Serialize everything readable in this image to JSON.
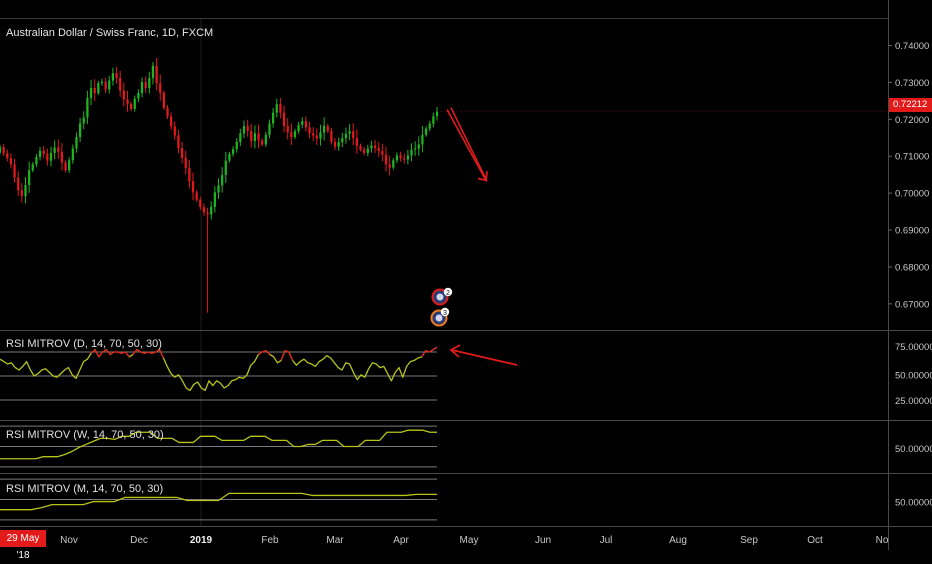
{
  "header": {
    "title": "Australian Dollar / Swiss Franc, 1D, FXCM"
  },
  "price_badge": "0.72212",
  "date_badge": "29 May '18",
  "events": [
    {
      "label": "2"
    },
    {
      "label": "3"
    }
  ],
  "colors": {
    "up": "#1fb51f",
    "down": "#e31a1a",
    "rsi_line": "#b7c41a",
    "level_line": "#7a7a7a",
    "arrow": "#e31a1a",
    "badge": "#e31a1a"
  },
  "chart_data": [
    {
      "type": "candlestick",
      "title": "Australian Dollar / Swiss Franc, 1D, FXCM",
      "x_ticks": [
        "Nov",
        "Dec",
        "2019",
        "Feb",
        "Mar",
        "Apr",
        "May",
        "Jun",
        "Jul",
        "Aug",
        "Sep",
        "Oct",
        "No"
      ],
      "y_ticks": [
        "0.74000",
        "0.73000",
        "0.72000",
        "0.71000",
        "0.70000",
        "0.69000",
        "0.68000",
        "0.67000"
      ],
      "ylim": [
        0.664,
        0.7442
      ],
      "last_price": 0.72212,
      "closes": [
        0.7125,
        0.7108,
        0.7095,
        0.7078,
        0.7042,
        0.7008,
        0.6992,
        0.7022,
        0.7062,
        0.7078,
        0.7098,
        0.7115,
        0.7106,
        0.7088,
        0.7109,
        0.7124,
        0.7112,
        0.7083,
        0.7062,
        0.7089,
        0.7121,
        0.7152,
        0.7189,
        0.7205,
        0.7258,
        0.7285,
        0.7271,
        0.7298,
        0.7302,
        0.7281,
        0.7305,
        0.7325,
        0.7312,
        0.7278,
        0.7254,
        0.7242,
        0.7228,
        0.7256,
        0.7271,
        0.7301,
        0.7285,
        0.7312,
        0.7345,
        0.7298,
        0.7272,
        0.7231,
        0.7208,
        0.7181,
        0.7156,
        0.7122,
        0.7096,
        0.7068,
        0.7032,
        0.7002,
        0.6982,
        0.6962,
        0.6948,
        0.6942,
        0.6963,
        0.7002,
        0.7021,
        0.7049,
        0.7088,
        0.7106,
        0.7119,
        0.7139,
        0.7162,
        0.7182,
        0.7168,
        0.7141,
        0.7162,
        0.7143,
        0.7132,
        0.7158,
        0.7189,
        0.7218,
        0.7241,
        0.7218,
        0.7182,
        0.7165,
        0.7152,
        0.7168,
        0.7185,
        0.7195,
        0.7178,
        0.7162,
        0.7156,
        0.7148,
        0.7164,
        0.7182,
        0.7168,
        0.7139,
        0.7126,
        0.7138,
        0.7149,
        0.7161,
        0.7168,
        0.7149,
        0.7128,
        0.7118,
        0.7109,
        0.7121,
        0.7129,
        0.7122,
        0.7114,
        0.7104,
        0.7078,
        0.7069,
        0.7089,
        0.7102,
        0.7095,
        0.7091,
        0.7102,
        0.7118,
        0.7121,
        0.7132,
        0.7158,
        0.7175,
        0.7188,
        0.7208,
        0.7221
      ],
      "wick_extremes": {
        "high": 0.7355,
        "low": 0.6676
      },
      "drawn_arrow": {
        "from": {
          "month": "Apr",
          "price": 0.7221
        },
        "to": {
          "month": "May",
          "price": 0.7032
        }
      },
      "events": [
        "2",
        "3"
      ]
    },
    {
      "type": "line",
      "title": "RSI MITROV (D, 14, 70, 50, 30)",
      "y_ticks": [
        "75.00000",
        "50.00000",
        "25.00000"
      ],
      "ylim": [
        15,
        85
      ],
      "levels": [
        70,
        50,
        30
      ],
      "values": [
        64,
        62,
        60,
        61,
        57,
        55,
        58,
        62,
        55,
        50,
        52,
        55,
        56,
        53,
        50,
        49,
        52,
        55,
        57,
        51,
        48,
        55,
        62,
        64,
        69,
        72,
        66,
        70,
        72,
        68,
        70,
        70,
        69,
        70,
        66,
        68,
        72,
        70,
        69,
        70,
        69,
        70,
        72,
        65,
        58,
        52,
        49,
        51,
        46,
        40,
        38,
        43,
        45,
        40,
        38,
        46,
        42,
        46,
        44,
        40,
        42,
        46,
        47,
        49,
        48,
        51,
        59,
        62,
        68,
        70,
        71,
        68,
        66,
        61,
        63,
        71,
        70,
        63,
        59,
        62,
        64,
        61,
        60,
        58,
        62,
        64,
        67,
        65,
        61,
        57,
        55,
        61,
        60,
        53,
        47,
        51,
        49,
        56,
        61,
        60,
        57,
        58,
        52,
        46,
        53,
        57,
        49,
        58,
        62,
        63,
        65,
        66,
        71,
        70,
        72,
        74
      ]
    },
    {
      "type": "line",
      "title": "RSI MITROV (W, 14, 70, 50, 30)",
      "y_ticks": [
        "50.00000"
      ],
      "ylim": [
        25,
        75
      ],
      "levels": [
        70,
        50,
        30
      ],
      "values": [
        38,
        38,
        38,
        38,
        38,
        38,
        40,
        40,
        40,
        42,
        45,
        49,
        52,
        55,
        58,
        58,
        57,
        60,
        60,
        64,
        64,
        64,
        58,
        58,
        58,
        54,
        54,
        54,
        60,
        60,
        60,
        56,
        56,
        56,
        56,
        60,
        60,
        60,
        56,
        56,
        56,
        50,
        50,
        52,
        52,
        56,
        56,
        56,
        50,
        50,
        50,
        56,
        56,
        56,
        64,
        64,
        64,
        66,
        66,
        66,
        64,
        64
      ]
    },
    {
      "type": "line",
      "title": "RSI MITROV (M, 14, 70, 50, 30)",
      "y_ticks": [
        "50.00000"
      ],
      "ylim": [
        25,
        75
      ],
      "levels": [
        70,
        50,
        30
      ],
      "values": [
        40,
        40,
        40,
        40,
        42,
        45,
        45,
        45,
        45,
        48,
        48,
        48,
        52,
        52,
        52,
        52,
        52,
        52,
        49,
        49,
        49,
        49,
        56,
        56,
        56,
        56,
        56,
        56,
        56,
        56,
        54,
        54,
        54,
        54,
        54,
        54,
        54,
        54,
        54,
        54,
        55,
        55,
        55
      ]
    }
  ]
}
